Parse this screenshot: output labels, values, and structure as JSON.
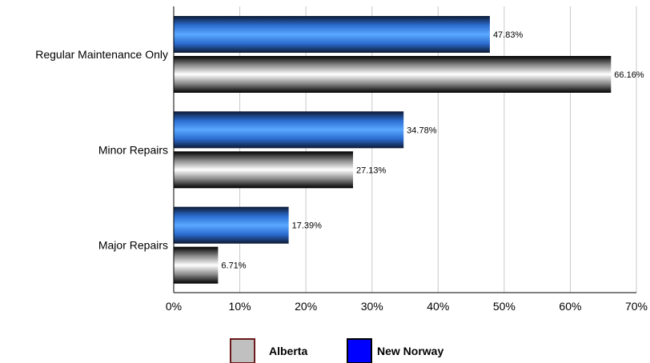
{
  "chart_data": {
    "type": "bar",
    "orientation": "horizontal",
    "categories": [
      "Regular Maintenance Only",
      "Minor Repairs",
      "Major Repairs"
    ],
    "series": [
      {
        "name": "New Norway",
        "values": [
          47.83,
          34.78,
          17.39
        ],
        "labels": [
          "47.83%",
          "34.78%",
          "17.39%"
        ],
        "color": "#3f8ff0"
      },
      {
        "name": "Alberta",
        "values": [
          66.16,
          27.13,
          6.71
        ],
        "labels": [
          "66.16%",
          "27.13%",
          "6.71%"
        ],
        "color": "#c0c0c0"
      }
    ],
    "xlim": [
      0,
      70
    ],
    "x_ticks": [
      "0%",
      "10%",
      "20%",
      "30%",
      "40%",
      "50%",
      "60%",
      "70%"
    ],
    "grid": true,
    "legend": {
      "position": "bottom",
      "entries": [
        {
          "name": "Alberta",
          "color": "#c0c0c0",
          "border": "#6b1a1a"
        },
        {
          "name": "New Norway",
          "color": "#0000ff",
          "border": "#000000"
        }
      ]
    }
  }
}
